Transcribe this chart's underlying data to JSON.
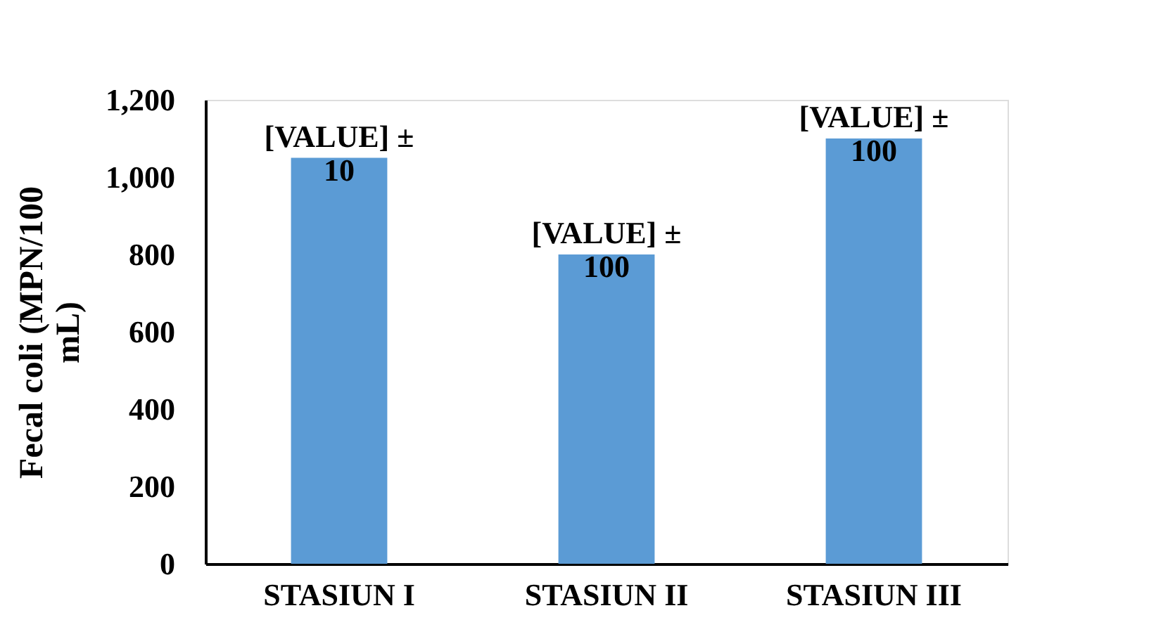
{
  "chart_data": {
    "type": "bar",
    "ylabel": "Fecal coli (MPN/100 mL)",
    "categories": [
      "STASIUN I",
      "STASIUN  II",
      "STASIUN III"
    ],
    "values": [
      1050,
      800,
      1100
    ],
    "annotations": [
      {
        "text": "[VALUE] ± 10",
        "x": "STASIUN I",
        "y": 1050
      },
      {
        "text": "[VALUE] ± 100",
        "x": "STASIUN  II",
        "y": 800
      },
      {
        "text": "[VALUE] ± 100",
        "x": "STASIUN III",
        "y": 1100
      }
    ],
    "color": "#5b9bd5",
    "ylim": [
      0,
      1200
    ],
    "yticks": [
      0,
      200,
      400,
      600,
      800,
      {
        "value": 1000,
        "label": "1,000"
      },
      {
        "value": 1200,
        "label": "1,200"
      }
    ],
    "grid": false
  }
}
